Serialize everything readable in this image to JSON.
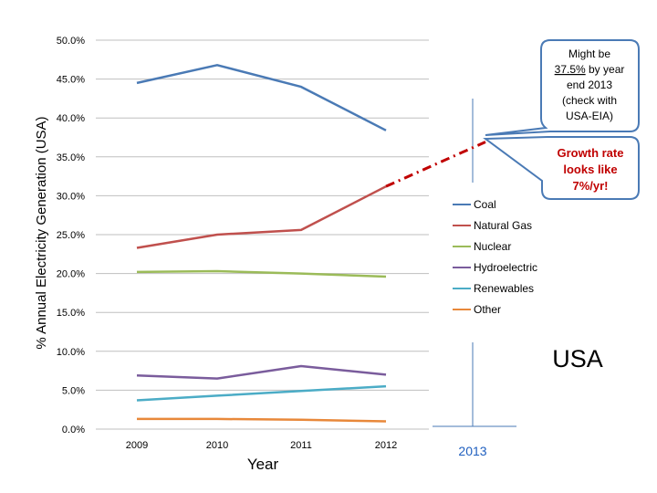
{
  "chart_data": {
    "type": "line",
    "x": [
      "2009",
      "2010",
      "2011",
      "2012"
    ],
    "extra_x": "2013",
    "xlabel": "Year",
    "ylabel": "% Annual Electricity Generation (USA)",
    "ylim": [
      0,
      50
    ],
    "yticks": [
      "0.0%",
      "5.0%",
      "10.0%",
      "15.0%",
      "20.0%",
      "25.0%",
      "30.0%",
      "35.0%",
      "40.0%",
      "45.0%",
      "50.0%"
    ],
    "grid": true,
    "legend_position": "right",
    "series": [
      {
        "name": "Coal",
        "color": "#4a7ab5",
        "values": [
          44.5,
          46.8,
          44.0,
          38.4
        ]
      },
      {
        "name": "Natural Gas",
        "color": "#c0504d",
        "values": [
          23.3,
          25.0,
          25.6,
          31.2
        ]
      },
      {
        "name": "Nuclear",
        "color": "#9bbb59",
        "values": [
          20.2,
          20.3,
          20.0,
          19.6
        ]
      },
      {
        "name": "Hydroelectric",
        "color": "#7a5c9c",
        "values": [
          6.9,
          6.5,
          8.1,
          7.0
        ]
      },
      {
        "name": "Renewables",
        "color": "#4bacc6",
        "values": [
          3.7,
          4.3,
          4.9,
          5.5
        ]
      },
      {
        "name": "Other",
        "color": "#e8883a",
        "values": [
          1.3,
          1.3,
          1.2,
          1.0
        ]
      }
    ],
    "projection": {
      "from_x": "2012",
      "from_value": 31.2,
      "to_x": "2013",
      "to_value": 37.5,
      "color": "#c00000"
    },
    "annotations": {
      "top_callout": {
        "line1": "Might be",
        "line2": "37.5%",
        "line3": " by year",
        "line4": "end 2013",
        "line5": "(check with",
        "line6": "USA-EIA)"
      },
      "growth_callout": {
        "line1": "Growth rate",
        "line2": "looks like",
        "line3": "7%/yr!",
        "color": "#c00000"
      },
      "region_label": "USA",
      "year_label": "2013",
      "year_label_color": "#1f5fbf",
      "callout_border_color": "#4a7ab5"
    }
  }
}
